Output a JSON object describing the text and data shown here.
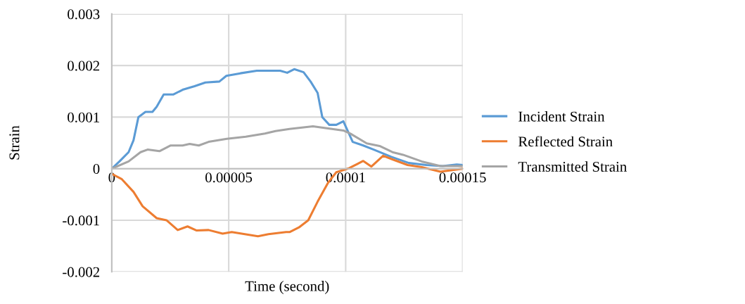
{
  "chart_data": {
    "type": "line",
    "xlabel": "Time (second)",
    "ylabel": "Strain",
    "xlim": [
      0,
      0.00015
    ],
    "xticks": [
      0,
      {
        "value": 5e-05,
        "label": "0.00005"
      },
      0.0001,
      0.00015
    ],
    "ylim": [
      -0.002,
      0.003
    ],
    "yticks": [
      -0.002,
      -0.001,
      0,
      0.001,
      0.002,
      0.003
    ],
    "grid": true,
    "legend": "right",
    "marker": "none",
    "line_style": "solid",
    "series": [
      {
        "name": "Incident Strain",
        "color": "#5b9bd5",
        "x": [
          0,
          3.3e-06,
          7.2e-06,
          9.3e-06,
          1.14e-05,
          1.44e-05,
          1.74e-05,
          1.92e-05,
          2.22e-05,
          2.64e-05,
          3.03e-05,
          3.54e-05,
          4e-05,
          4.6e-05,
          4.9e-05,
          5.5e-05,
          6.2e-05,
          6.9e-05,
          7.2e-05,
          7.5e-05,
          7.8e-05,
          8.2e-05,
          8.5e-05,
          8.8e-05,
          9e-05,
          9.3e-05,
          9.6e-05,
          9.9e-05,
          0.0001,
          0.000103,
          0.0001075,
          0.000112,
          0.0001195,
          0.000127,
          0.0001345,
          0.0001415,
          0.0001475,
          0.00015
        ],
        "values": [
          0,
          0.00014,
          0.00032,
          0.00055,
          0.001,
          0.0011,
          0.0011,
          0.0012,
          0.00144,
          0.00144,
          0.00153,
          0.0016,
          0.00167,
          0.00169,
          0.0018,
          0.00185,
          0.0019,
          0.0019,
          0.0019,
          0.00186,
          0.00193,
          0.00187,
          0.00169,
          0.00147,
          0.001,
          0.00085,
          0.00085,
          0.00092,
          0.00082,
          0.00052,
          0.00045,
          0.00037,
          0.00023,
          0.00011,
          7e-05,
          5e-05,
          8e-05,
          7e-05
        ]
      },
      {
        "name": "Reflected Strain",
        "color": "#ed7d31",
        "x": [
          0,
          4.2e-06,
          9.3e-06,
          1.32e-05,
          1.92e-05,
          2.34e-05,
          2.82e-05,
          3.24e-05,
          3.63e-05,
          4.14e-05,
          4.74e-05,
          5.13e-05,
          6.25e-05,
          6.7e-05,
          7.45e-05,
          7.6e-05,
          8e-05,
          8.4e-05,
          8.8e-05,
          9.25e-05,
          9.6e-05,
          0.0001015,
          0.0001075,
          0.000111,
          0.000116,
          0.00012,
          0.0001265,
          0.0001325,
          0.0001405,
          0.00015
        ],
        "values": [
          -0.0001,
          -0.0002,
          -0.00045,
          -0.00073,
          -0.00096,
          -0.001,
          -0.00119,
          -0.00112,
          -0.0012,
          -0.00119,
          -0.00126,
          -0.00123,
          -0.00131,
          -0.00127,
          -0.00123,
          -0.00123,
          -0.00114,
          -0.001,
          -0.00064,
          -0.00027,
          -7e-05,
          1e-05,
          0.00015,
          4e-05,
          0.00025,
          0.00018,
          7e-05,
          3e-05,
          -6e-05,
          0
        ]
      },
      {
        "name": "Transmitted Strain",
        "color": "#a5a5a5",
        "x": [
          0,
          7.2e-06,
          1.23e-05,
          1.53e-05,
          2.04e-05,
          2.52e-05,
          3.03e-05,
          3.33e-05,
          3.72e-05,
          4.14e-05,
          4.92e-05,
          5.73e-05,
          6.55e-05,
          7e-05,
          7.6e-05,
          8.6e-05,
          9.25e-05,
          9.9e-05,
          0.000102,
          0.000109,
          0.0001145,
          0.00012,
          0.0001245,
          0.0001325,
          0.0001405,
          0.00015
        ],
        "values": [
          0,
          0.00014,
          0.00032,
          0.00037,
          0.00034,
          0.00045,
          0.00045,
          0.00048,
          0.00045,
          0.00052,
          0.00058,
          0.00062,
          0.00068,
          0.00073,
          0.00077,
          0.00082,
          0.00078,
          0.00074,
          0.00068,
          0.00049,
          0.00044,
          0.00032,
          0.00027,
          0.00014,
          5e-05,
          5e-05
        ]
      }
    ]
  }
}
